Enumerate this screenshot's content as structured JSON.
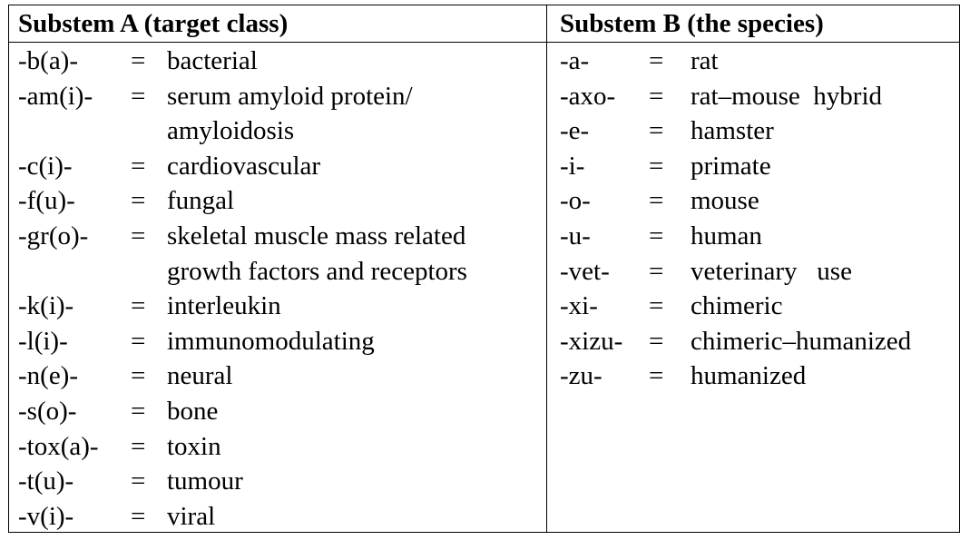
{
  "headers": {
    "a": "Substem A (target class)",
    "b": "Substem B (the species)"
  },
  "substem_a": [
    {
      "stem": "-b(a)-",
      "eq": "=",
      "meaning": [
        "bacterial"
      ]
    },
    {
      "stem": "-am(i)-",
      "eq": "=",
      "meaning": [
        "serum amyloid protein/",
        "amyloidosis"
      ]
    },
    {
      "stem": "-c(i)-",
      "eq": "=",
      "meaning": [
        "cardiovascular"
      ]
    },
    {
      "stem": "-f(u)-",
      "eq": "=",
      "meaning": [
        "fungal"
      ]
    },
    {
      "stem": "-gr(o)-",
      "eq": "=",
      "meaning": [
        "skeletal muscle mass related",
        "growth factors and receptors"
      ]
    },
    {
      "stem": "-k(i)-",
      "eq": "=",
      "meaning": [
        "interleukin"
      ]
    },
    {
      "stem": "-l(i)-",
      "eq": "=",
      "meaning": [
        "immunomodulating"
      ]
    },
    {
      "stem": "-n(e)-",
      "eq": "=",
      "meaning": [
        "neural"
      ]
    },
    {
      "stem": "-s(o)-",
      "eq": "=",
      "meaning": [
        "bone"
      ]
    },
    {
      "stem": "-tox(a)-",
      "eq": "=",
      "meaning": [
        "toxin"
      ]
    },
    {
      "stem": "-t(u)-",
      "eq": "=",
      "meaning": [
        "tumour"
      ]
    },
    {
      "stem": "-v(i)-",
      "eq": "=",
      "meaning": [
        "viral"
      ]
    }
  ],
  "substem_b": [
    {
      "stem": "-a-",
      "eq": "=",
      "meaning": "rat"
    },
    {
      "stem": "-axo-",
      "eq": "=",
      "meaning": "rat–mouse  hybrid"
    },
    {
      "stem": "-e-",
      "eq": "=",
      "meaning": "hamster"
    },
    {
      "stem": "-i-",
      "eq": "=",
      "meaning": "primate"
    },
    {
      "stem": "-o-",
      "eq": "=",
      "meaning": "mouse"
    },
    {
      "stem": "-u-",
      "eq": "=",
      "meaning": "human"
    },
    {
      "stem": "-vet-",
      "eq": "=",
      "meaning": "veterinary   use"
    },
    {
      "stem": "-xi-",
      "eq": "=",
      "meaning": "chimeric"
    },
    {
      "stem": "-xizu-",
      "eq": "=",
      "meaning": "chimeric–humanized"
    },
    {
      "stem": "-zu-",
      "eq": "=",
      "meaning": "humanized"
    }
  ]
}
